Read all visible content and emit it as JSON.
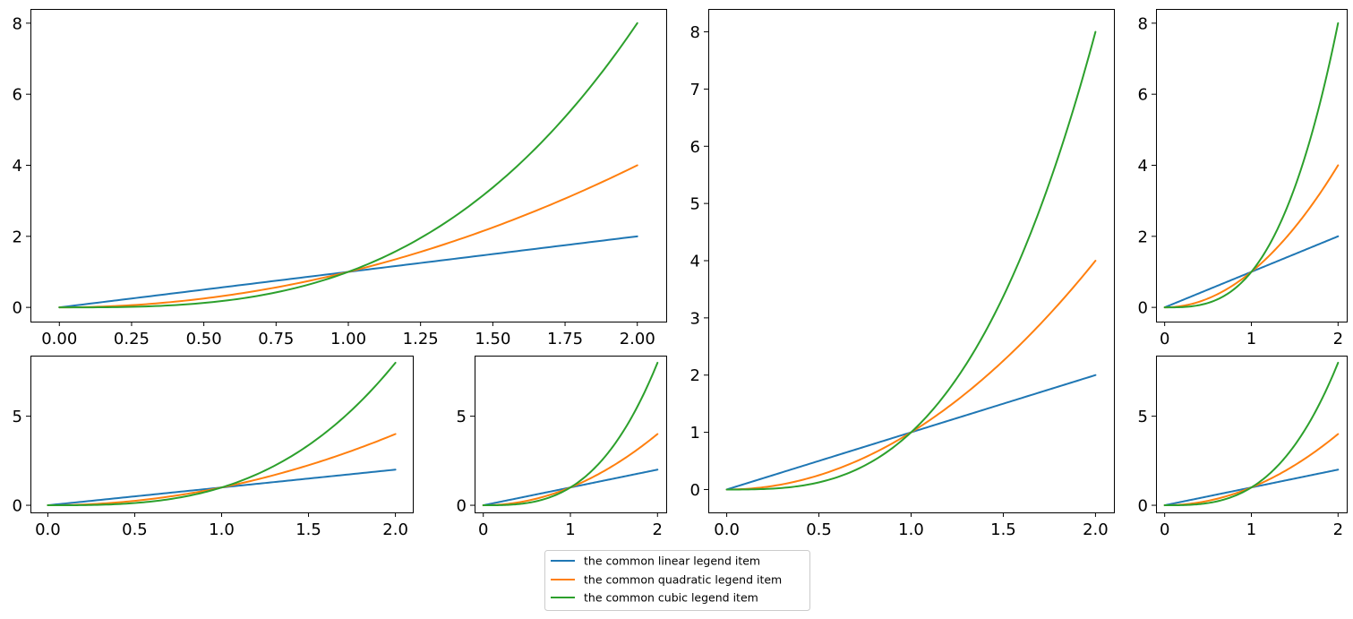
{
  "series_colors": {
    "linear": "#1f77b4",
    "quadratic": "#ff7f0e",
    "cubic": "#2ca02c"
  },
  "legend": {
    "items": [
      {
        "key": "linear",
        "label": "the common linear legend item",
        "color": "#1f77b4"
      },
      {
        "key": "quadratic",
        "label": "the common quadratic legend item",
        "color": "#ff7f0e"
      },
      {
        "key": "cubic",
        "label": "the common cubic legend item",
        "color": "#2ca02c"
      }
    ]
  },
  "chart_data": [
    {
      "id": "top-left",
      "type": "line",
      "xlim": [
        -0.1,
        2.1
      ],
      "ylim": [
        -0.4,
        8.4
      ],
      "xticks": [
        0,
        0.25,
        0.5,
        0.75,
        1.0,
        1.25,
        1.5,
        1.75,
        2.0
      ],
      "xtick_labels": [
        "0.00",
        "0.25",
        "0.50",
        "0.75",
        "1.00",
        "1.25",
        "1.50",
        "1.75",
        "2.00"
      ],
      "yticks": [
        0,
        2,
        4,
        6,
        8
      ],
      "ytick_labels": [
        "0",
        "2",
        "4",
        "6",
        "8"
      ],
      "series": [
        {
          "name": "the common linear legend item",
          "x": [
            0,
            0.5,
            1.0,
            1.5,
            2.0
          ],
          "y": [
            0,
            0.5,
            1.0,
            1.5,
            2.0
          ]
        },
        {
          "name": "the common quadratic legend item",
          "x": [
            0,
            0.5,
            1.0,
            1.5,
            2.0
          ],
          "y": [
            0,
            0.25,
            1.0,
            2.25,
            4.0
          ]
        },
        {
          "name": "the common cubic legend item",
          "x": [
            0,
            0.5,
            1.0,
            1.5,
            2.0
          ],
          "y": [
            0,
            0.125,
            1.0,
            3.375,
            8.0
          ]
        }
      ]
    },
    {
      "id": "bottom-left-wide",
      "type": "line",
      "xlim": [
        -0.1,
        2.1
      ],
      "ylim": [
        -0.4,
        8.4
      ],
      "xticks": [
        0,
        0.5,
        1.0,
        1.5,
        2.0
      ],
      "xtick_labels": [
        "0.0",
        "0.5",
        "1.0",
        "1.5",
        "2.0"
      ],
      "yticks": [
        0,
        5
      ],
      "ytick_labels": [
        "0",
        "5"
      ],
      "series": [
        {
          "name": "the common linear legend item",
          "x": [
            0,
            0.5,
            1.0,
            1.5,
            2.0
          ],
          "y": [
            0,
            0.5,
            1.0,
            1.5,
            2.0
          ]
        },
        {
          "name": "the common quadratic legend item",
          "x": [
            0,
            0.5,
            1.0,
            1.5,
            2.0
          ],
          "y": [
            0,
            0.25,
            1.0,
            2.25,
            4.0
          ]
        },
        {
          "name": "the common cubic legend item",
          "x": [
            0,
            0.5,
            1.0,
            1.5,
            2.0
          ],
          "y": [
            0,
            0.125,
            1.0,
            3.375,
            8.0
          ]
        }
      ]
    },
    {
      "id": "bottom-left-narrow",
      "type": "line",
      "xlim": [
        -0.1,
        2.1
      ],
      "ylim": [
        -0.4,
        8.4
      ],
      "xticks": [
        0,
        1,
        2
      ],
      "xtick_labels": [
        "0",
        "1",
        "2"
      ],
      "yticks": [
        0,
        5
      ],
      "ytick_labels": [
        "0",
        "5"
      ],
      "series": [
        {
          "name": "the common linear legend item",
          "x": [
            0,
            0.5,
            1.0,
            1.5,
            2.0
          ],
          "y": [
            0,
            0.5,
            1.0,
            1.5,
            2.0
          ]
        },
        {
          "name": "the common quadratic legend item",
          "x": [
            0,
            0.5,
            1.0,
            1.5,
            2.0
          ],
          "y": [
            0,
            0.25,
            1.0,
            2.25,
            4.0
          ]
        },
        {
          "name": "the common cubic legend item",
          "x": [
            0,
            0.5,
            1.0,
            1.5,
            2.0
          ],
          "y": [
            0,
            0.125,
            1.0,
            3.375,
            8.0
          ]
        }
      ]
    },
    {
      "id": "center-tall",
      "type": "line",
      "xlim": [
        -0.1,
        2.1
      ],
      "ylim": [
        -0.4,
        8.4
      ],
      "xticks": [
        0,
        0.5,
        1.0,
        1.5,
        2.0
      ],
      "xtick_labels": [
        "0.0",
        "0.5",
        "1.0",
        "1.5",
        "2.0"
      ],
      "yticks": [
        0,
        1,
        2,
        3,
        4,
        5,
        6,
        7,
        8
      ],
      "ytick_labels": [
        "0",
        "1",
        "2",
        "3",
        "4",
        "5",
        "6",
        "7",
        "8"
      ],
      "series": [
        {
          "name": "the common linear legend item",
          "x": [
            0,
            0.5,
            1.0,
            1.5,
            2.0
          ],
          "y": [
            0,
            0.5,
            1.0,
            1.5,
            2.0
          ]
        },
        {
          "name": "the common quadratic legend item",
          "x": [
            0,
            0.5,
            1.0,
            1.5,
            2.0
          ],
          "y": [
            0,
            0.25,
            1.0,
            2.25,
            4.0
          ]
        },
        {
          "name": "the common cubic legend item",
          "x": [
            0,
            0.5,
            1.0,
            1.5,
            2.0
          ],
          "y": [
            0,
            0.125,
            1.0,
            3.375,
            8.0
          ]
        }
      ]
    },
    {
      "id": "top-right",
      "type": "line",
      "xlim": [
        -0.1,
        2.1
      ],
      "ylim": [
        -0.4,
        8.4
      ],
      "xticks": [
        0,
        1,
        2
      ],
      "xtick_labels": [
        "0",
        "1",
        "2"
      ],
      "yticks": [
        0,
        2,
        4,
        6,
        8
      ],
      "ytick_labels": [
        "0",
        "2",
        "4",
        "6",
        "8"
      ],
      "series": [
        {
          "name": "the common linear legend item",
          "x": [
            0,
            0.5,
            1.0,
            1.5,
            2.0
          ],
          "y": [
            0,
            0.5,
            1.0,
            1.5,
            2.0
          ]
        },
        {
          "name": "the common quadratic legend item",
          "x": [
            0,
            0.5,
            1.0,
            1.5,
            2.0
          ],
          "y": [
            0,
            0.25,
            1.0,
            2.25,
            4.0
          ]
        },
        {
          "name": "the common cubic legend item",
          "x": [
            0,
            0.5,
            1.0,
            1.5,
            2.0
          ],
          "y": [
            0,
            0.125,
            1.0,
            3.375,
            8.0
          ]
        }
      ]
    },
    {
      "id": "bottom-right",
      "type": "line",
      "xlim": [
        -0.1,
        2.1
      ],
      "ylim": [
        -0.4,
        8.4
      ],
      "xticks": [
        0,
        1,
        2
      ],
      "xtick_labels": [
        "0",
        "1",
        "2"
      ],
      "yticks": [
        0,
        5
      ],
      "ytick_labels": [
        "0",
        "5"
      ],
      "series": [
        {
          "name": "the common linear legend item",
          "x": [
            0,
            0.5,
            1.0,
            1.5,
            2.0
          ],
          "y": [
            0,
            0.5,
            1.0,
            1.5,
            2.0
          ]
        },
        {
          "name": "the common quadratic legend item",
          "x": [
            0,
            0.5,
            1.0,
            1.5,
            2.0
          ],
          "y": [
            0,
            0.25,
            1.0,
            2.25,
            4.0
          ]
        },
        {
          "name": "the common cubic legend item",
          "x": [
            0,
            0.5,
            1.0,
            1.5,
            2.0
          ],
          "y": [
            0,
            0.125,
            1.0,
            3.375,
            8.0
          ]
        }
      ]
    }
  ]
}
